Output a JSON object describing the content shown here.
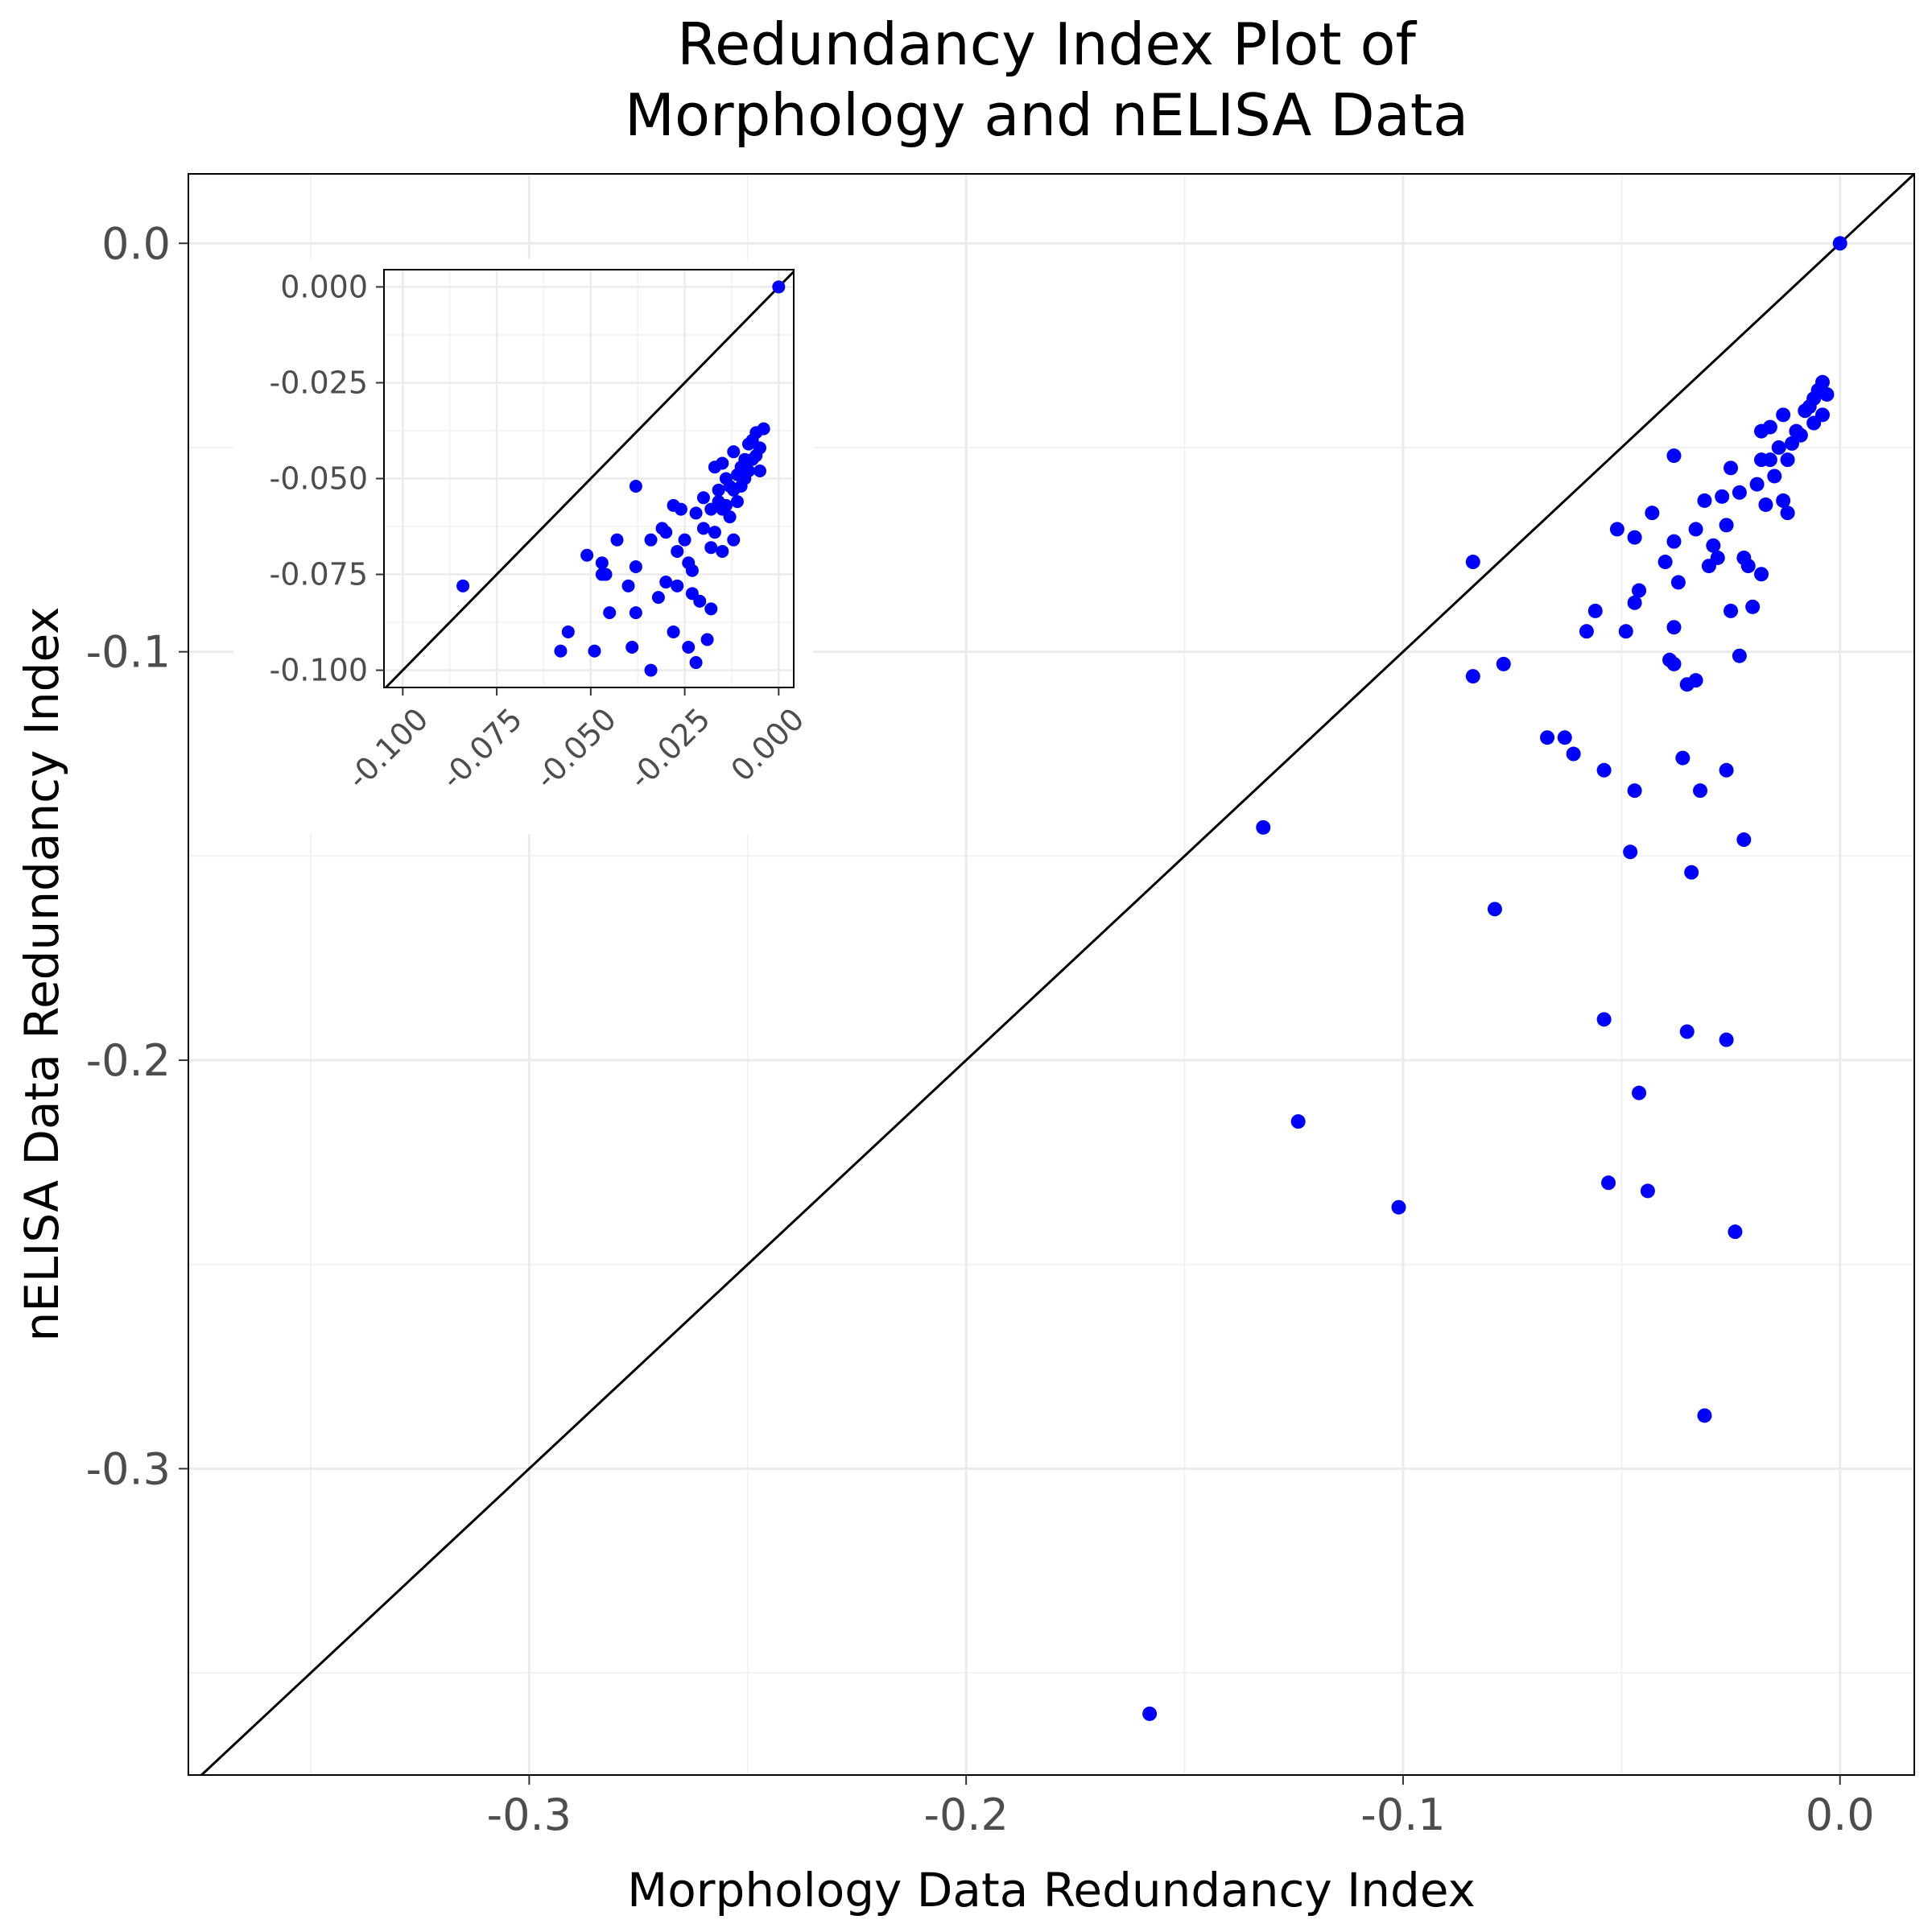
{
  "chart_data": [
    {
      "type": "scatter",
      "title_lines": [
        "Redundancy Index Plot of",
        "Morphology and nELISA Data"
      ],
      "xlabel": "Morphology Data Redundancy Index",
      "ylabel": "nELISA Data Redundancy Index",
      "xlim": [
        -0.378,
        0.017
      ],
      "ylim": [
        -0.375,
        0.017
      ],
      "x_ticks": [
        -0.3,
        -0.2,
        -0.1,
        0.0
      ],
      "x_tick_labels": [
        "-0.3",
        "-0.2",
        "-0.1",
        "0.0"
      ],
      "y_ticks": [
        0.0,
        -0.1,
        -0.2,
        -0.3
      ],
      "y_tick_labels": [
        "0.0",
        "-0.1",
        "-0.2",
        "-0.3"
      ],
      "grid": true,
      "reference_line": "y = x",
      "point_color": "#0000ff",
      "line_color": "#000000",
      "series": [
        {
          "points": [
            [
              0.0,
              0.0
            ],
            [
              -0.158,
              -0.36
            ],
            [
              -0.132,
              -0.143
            ],
            [
              -0.124,
              -0.215
            ],
            [
              -0.101,
              -0.236
            ],
            [
              -0.084,
              -0.078
            ],
            [
              -0.084,
              -0.106
            ],
            [
              -0.079,
              -0.163
            ],
            [
              -0.077,
              -0.103
            ],
            [
              -0.067,
              -0.121
            ],
            [
              -0.063,
              -0.121
            ],
            [
              -0.061,
              -0.125
            ],
            [
              -0.058,
              -0.095
            ],
            [
              -0.056,
              -0.09
            ],
            [
              -0.054,
              -0.129
            ],
            [
              -0.054,
              -0.19
            ],
            [
              -0.053,
              -0.23
            ],
            [
              -0.051,
              -0.07
            ],
            [
              -0.049,
              -0.095
            ],
            [
              -0.048,
              -0.149
            ],
            [
              -0.047,
              -0.072
            ],
            [
              -0.047,
              -0.088
            ],
            [
              -0.047,
              -0.134
            ],
            [
              -0.046,
              -0.208
            ],
            [
              -0.046,
              -0.085
            ],
            [
              -0.044,
              -0.232
            ],
            [
              -0.043,
              -0.066
            ],
            [
              -0.04,
              -0.078
            ],
            [
              -0.039,
              -0.102
            ],
            [
              -0.038,
              -0.103
            ],
            [
              -0.038,
              -0.094
            ],
            [
              -0.038,
              -0.073
            ],
            [
              -0.038,
              -0.052
            ],
            [
              -0.037,
              -0.083
            ],
            [
              -0.036,
              -0.126
            ],
            [
              -0.035,
              -0.193
            ],
            [
              -0.035,
              -0.108
            ],
            [
              -0.034,
              -0.154
            ],
            [
              -0.033,
              -0.107
            ],
            [
              -0.033,
              -0.07
            ],
            [
              -0.032,
              -0.134
            ],
            [
              -0.031,
              -0.063
            ],
            [
              -0.031,
              -0.287
            ],
            [
              -0.03,
              -0.079
            ],
            [
              -0.029,
              -0.074
            ],
            [
              -0.028,
              -0.077
            ],
            [
              -0.027,
              -0.062
            ],
            [
              -0.026,
              -0.069
            ],
            [
              -0.026,
              -0.129
            ],
            [
              -0.026,
              -0.195
            ],
            [
              -0.025,
              -0.055
            ],
            [
              -0.025,
              -0.09
            ],
            [
              -0.024,
              -0.242
            ],
            [
              -0.023,
              -0.101
            ],
            [
              -0.023,
              -0.061
            ],
            [
              -0.022,
              -0.146
            ],
            [
              -0.022,
              -0.077
            ],
            [
              -0.021,
              -0.079
            ],
            [
              -0.02,
              -0.089
            ],
            [
              -0.019,
              -0.059
            ],
            [
              -0.018,
              -0.081
            ],
            [
              -0.018,
              -0.053
            ],
            [
              -0.018,
              -0.046
            ],
            [
              -0.017,
              -0.064
            ],
            [
              -0.016,
              -0.053
            ],
            [
              -0.016,
              -0.045
            ],
            [
              -0.015,
              -0.057
            ],
            [
              -0.014,
              -0.05
            ],
            [
              -0.013,
              -0.042
            ],
            [
              -0.013,
              -0.063
            ],
            [
              -0.012,
              -0.053
            ],
            [
              -0.012,
              -0.066
            ],
            [
              -0.011,
              -0.049
            ],
            [
              -0.01,
              -0.046
            ],
            [
              -0.009,
              -0.047
            ],
            [
              -0.008,
              -0.041
            ],
            [
              -0.007,
              -0.04
            ],
            [
              -0.006,
              -0.038
            ],
            [
              -0.006,
              -0.044
            ],
            [
              -0.005,
              -0.036
            ],
            [
              -0.004,
              -0.034
            ],
            [
              -0.004,
              -0.042
            ],
            [
              -0.003,
              -0.037
            ]
          ]
        }
      ]
    },
    {
      "type": "scatter",
      "role": "inset",
      "xlim": [
        -0.105,
        0.004
      ],
      "ylim": [
        -0.1045,
        0.0045
      ],
      "x_ticks": [
        -0.1,
        -0.075,
        -0.05,
        -0.025,
        0.0
      ],
      "x_tick_labels": [
        "-0.100",
        "-0.075",
        "-0.050",
        "-0.025",
        "0.000"
      ],
      "y_ticks": [
        0.0,
        -0.025,
        -0.05,
        -0.075,
        -0.1
      ],
      "y_tick_labels": [
        "0.000",
        "-0.025",
        "-0.050",
        "-0.075",
        "-0.100"
      ],
      "grid": true,
      "reference_line": "y = x",
      "point_color": "#0000ff",
      "line_color": "#000000",
      "series": [
        {
          "points": [
            [
              0.0,
              0.0
            ],
            [
              -0.084,
              -0.078
            ],
            [
              -0.058,
              -0.095
            ],
            [
              -0.056,
              -0.09
            ],
            [
              -0.051,
              -0.07
            ],
            [
              -0.049,
              -0.095
            ],
            [
              -0.047,
              -0.072
            ],
            [
              -0.047,
              -0.075
            ],
            [
              -0.046,
              -0.075
            ],
            [
              -0.045,
              -0.085
            ],
            [
              -0.043,
              -0.066
            ],
            [
              -0.04,
              -0.078
            ],
            [
              -0.039,
              -0.094
            ],
            [
              -0.038,
              -0.085
            ],
            [
              -0.038,
              -0.073
            ],
            [
              -0.038,
              -0.052
            ],
            [
              -0.034,
              -0.1
            ],
            [
              -0.034,
              -0.066
            ],
            [
              -0.032,
              -0.081
            ],
            [
              -0.031,
              -0.063
            ],
            [
              -0.03,
              -0.064
            ],
            [
              -0.03,
              -0.077
            ],
            [
              -0.028,
              -0.057
            ],
            [
              -0.028,
              -0.09
            ],
            [
              -0.027,
              -0.069
            ],
            [
              -0.027,
              -0.078
            ],
            [
              -0.026,
              -0.058
            ],
            [
              -0.025,
              -0.066
            ],
            [
              -0.024,
              -0.072
            ],
            [
              -0.024,
              -0.094
            ],
            [
              -0.023,
              -0.074
            ],
            [
              -0.023,
              -0.08
            ],
            [
              -0.022,
              -0.059
            ],
            [
              -0.022,
              -0.098
            ],
            [
              -0.021,
              -0.082
            ],
            [
              -0.02,
              -0.063
            ],
            [
              -0.02,
              -0.055
            ],
            [
              -0.019,
              -0.092
            ],
            [
              -0.018,
              -0.068
            ],
            [
              -0.018,
              -0.058
            ],
            [
              -0.018,
              -0.084
            ],
            [
              -0.017,
              -0.047
            ],
            [
              -0.017,
              -0.064
            ],
            [
              -0.016,
              -0.053
            ],
            [
              -0.016,
              -0.056
            ],
            [
              -0.015,
              -0.069
            ],
            [
              -0.015,
              -0.058
            ],
            [
              -0.015,
              -0.046
            ],
            [
              -0.014,
              -0.05
            ],
            [
              -0.014,
              -0.057
            ],
            [
              -0.013,
              -0.052
            ],
            [
              -0.013,
              -0.06
            ],
            [
              -0.012,
              -0.053
            ],
            [
              -0.012,
              -0.066
            ],
            [
              -0.012,
              -0.043
            ],
            [
              -0.011,
              -0.049
            ],
            [
              -0.011,
              -0.056
            ],
            [
              -0.01,
              -0.047
            ],
            [
              -0.01,
              -0.052
            ],
            [
              -0.009,
              -0.045
            ],
            [
              -0.009,
              -0.05
            ],
            [
              -0.008,
              -0.041
            ],
            [
              -0.008,
              -0.048
            ],
            [
              -0.007,
              -0.04
            ],
            [
              -0.007,
              -0.045
            ],
            [
              -0.006,
              -0.038
            ],
            [
              -0.006,
              -0.044
            ],
            [
              -0.005,
              -0.042
            ],
            [
              -0.005,
              -0.048
            ],
            [
              -0.004,
              -0.037
            ]
          ]
        }
      ]
    }
  ]
}
